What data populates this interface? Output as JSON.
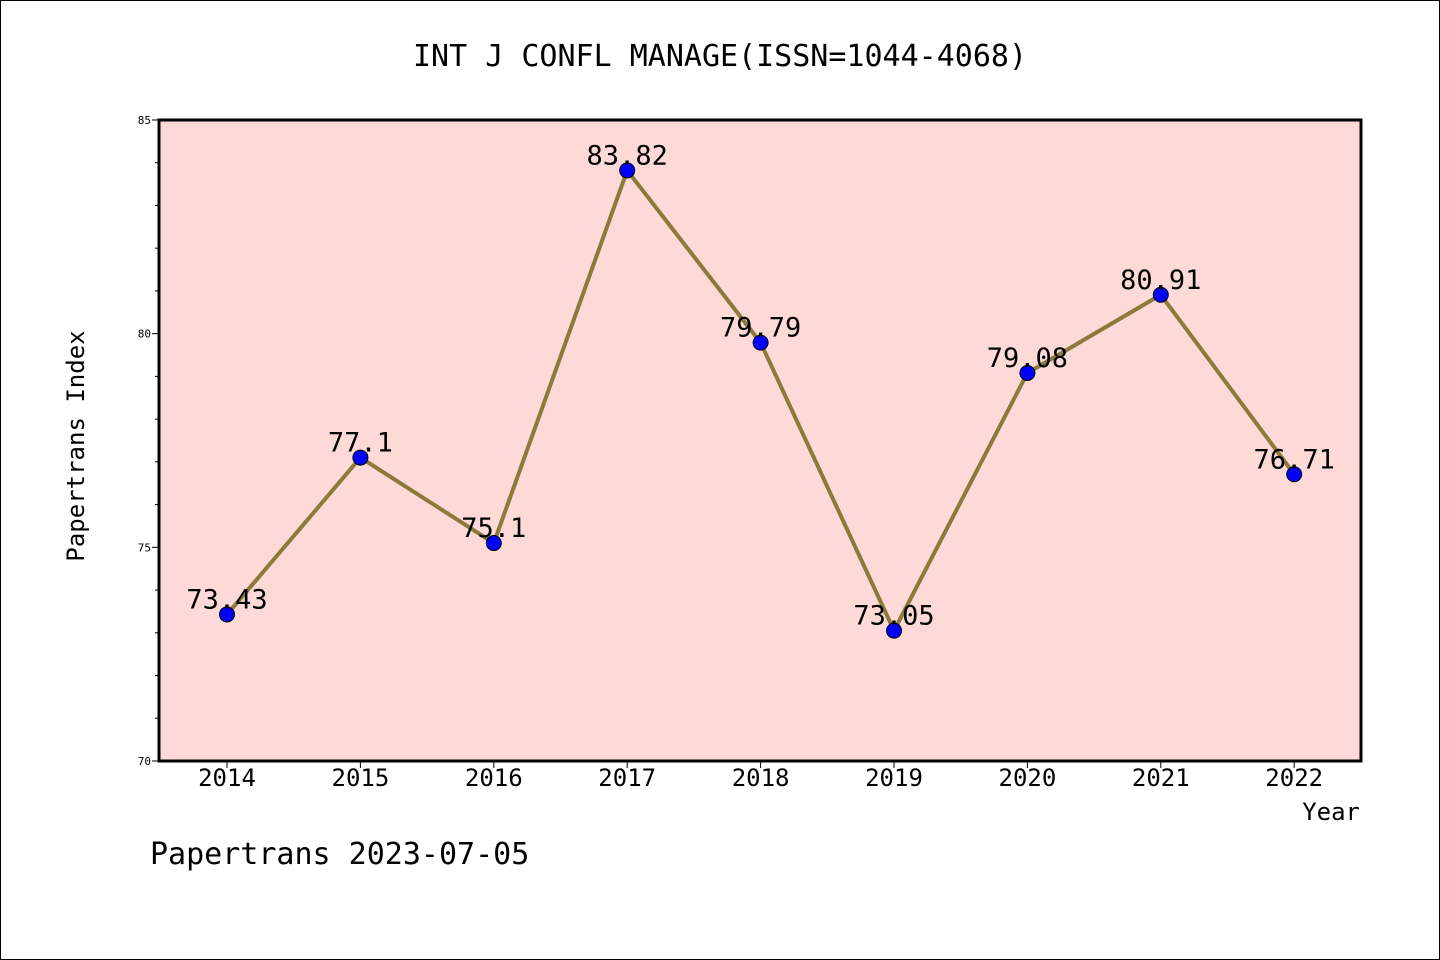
{
  "chart_data": {
    "type": "line",
    "title": "INT J CONFL MANAGE(ISSN=1044-4068)",
    "xlabel": "Year",
    "ylabel": "Papertrans Index",
    "categories": [
      "2014",
      "2015",
      "2016",
      "2017",
      "2018",
      "2019",
      "2020",
      "2021",
      "2022"
    ],
    "values": [
      73.43,
      77.1,
      75.1,
      83.82,
      79.79,
      73.05,
      79.08,
      80.91,
      76.71
    ],
    "data_labels": [
      "73.43",
      "77.1",
      "75.1",
      "83.82",
      "79.79",
      "73.05",
      "79.08",
      "80.91",
      "76.71"
    ],
    "ylim": [
      70,
      85
    ],
    "yticks": [
      "70",
      "75",
      "80",
      "85"
    ],
    "grid": false,
    "colors": {
      "plot_background": "#fddad7",
      "line": "#8b7a3a",
      "marker": "#0000ff"
    }
  },
  "footer": "Papertrans 2023-07-05"
}
